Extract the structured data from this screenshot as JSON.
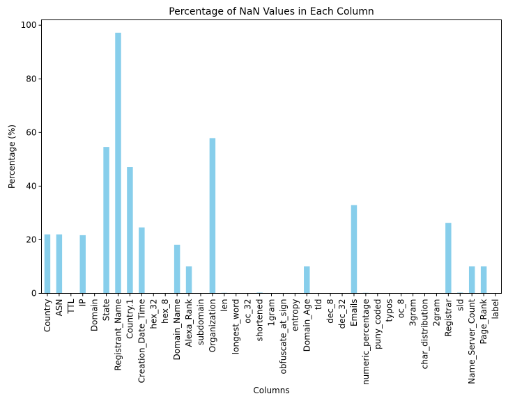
{
  "chart_data": {
    "type": "bar",
    "title": "Percentage of NaN Values in Each Column",
    "xlabel": "Columns",
    "ylabel": "Percentage (%)",
    "ylim": [
      0,
      102
    ],
    "yticks": [
      0,
      20,
      40,
      60,
      80,
      100
    ],
    "grid": false,
    "bar_color": "#87ceeb",
    "categories": [
      "Country",
      "ASN",
      "TTL",
      "IP",
      "Domain",
      "State",
      "Registrant_Name",
      "Country.1",
      "Creation_Date_Time",
      "hex_32",
      "hex_8",
      "Domain_Name",
      "Alexa_Rank",
      "subdomain",
      "Organization",
      "len",
      "longest_word",
      "oc_32",
      "shortened",
      "1gram",
      "obfuscate_at_sign",
      "entropy",
      "Domain_Age",
      "tld",
      "dec_8",
      "dec_32",
      "Emails",
      "numeric_percentage",
      "puny_coded",
      "typos",
      "oc_8",
      "3gram",
      "char_distribution",
      "2gram",
      "Registrar",
      "sld",
      "Name_Server_Count",
      "Page_Rank",
      "label"
    ],
    "values": [
      22,
      22,
      0,
      21.7,
      0,
      54.6,
      97.2,
      47.1,
      24.6,
      0,
      0,
      18.1,
      10.1,
      0,
      57.9,
      0.2,
      0,
      0,
      0.3,
      0,
      0,
      0,
      10.1,
      0,
      0,
      0,
      32.9,
      0.2,
      0,
      0,
      0,
      0,
      0,
      0,
      26.3,
      0.3,
      10.1,
      10.1,
      0
    ]
  }
}
